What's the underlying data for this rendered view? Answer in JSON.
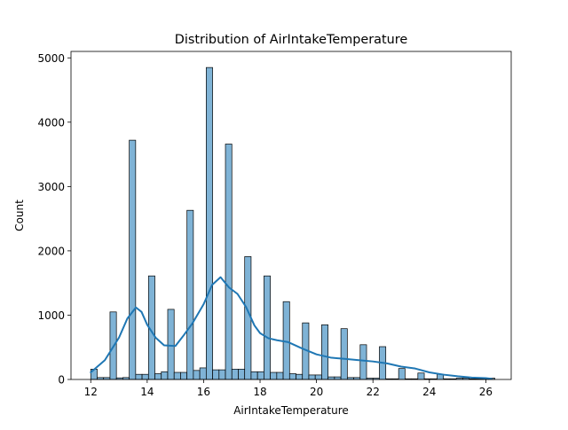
{
  "chart_data": {
    "type": "bar",
    "title": "Distribution of AirIntakeTemperature",
    "xlabel": "AirIntakeTemperature",
    "ylabel": "Count",
    "xlim": [
      11.3,
      26.9
    ],
    "ylim": [
      0,
      5100
    ],
    "xticks": [
      12,
      14,
      16,
      18,
      20,
      22,
      24,
      26
    ],
    "yticks": [
      0,
      1000,
      2000,
      3000,
      4000,
      5000
    ],
    "grid": false,
    "bar_color": "#7fb3d6",
    "kde_color": "#1f77b4",
    "bins": {
      "start": 12.0,
      "width": 0.2273,
      "counts": [
        160,
        30,
        30,
        1050,
        25,
        30,
        3720,
        80,
        80,
        1610,
        90,
        120,
        1090,
        110,
        110,
        2630,
        140,
        180,
        4850,
        150,
        150,
        3660,
        160,
        160,
        1910,
        120,
        120,
        1610,
        110,
        110,
        1210,
        90,
        80,
        880,
        70,
        70,
        850,
        40,
        40,
        790,
        30,
        30,
        540,
        20,
        20,
        510,
        10,
        10,
        170,
        10,
        10,
        100,
        10,
        10,
        80,
        10,
        10,
        20,
        20,
        10,
        10,
        10,
        20
      ]
    },
    "kde": {
      "x": [
        12.0,
        12.5,
        13.0,
        13.3,
        13.6,
        13.8,
        14.0,
        14.3,
        14.6,
        15.0,
        15.3,
        15.6,
        16.0,
        16.3,
        16.6,
        16.9,
        17.2,
        17.5,
        17.8,
        18.0,
        18.3,
        18.6,
        19.0,
        19.5,
        20.0,
        20.5,
        21.0,
        21.5,
        22.0,
        22.5,
        23.0,
        23.5,
        24.0,
        24.5,
        25.0,
        25.5,
        26.0,
        26.2
      ],
      "y": [
        110,
        300,
        650,
        950,
        1120,
        1050,
        850,
        650,
        530,
        520,
        690,
        870,
        1170,
        1470,
        1590,
        1430,
        1330,
        1130,
        840,
        720,
        640,
        610,
        580,
        480,
        390,
        340,
        320,
        300,
        280,
        250,
        200,
        170,
        110,
        75,
        50,
        30,
        20,
        10
      ]
    }
  }
}
